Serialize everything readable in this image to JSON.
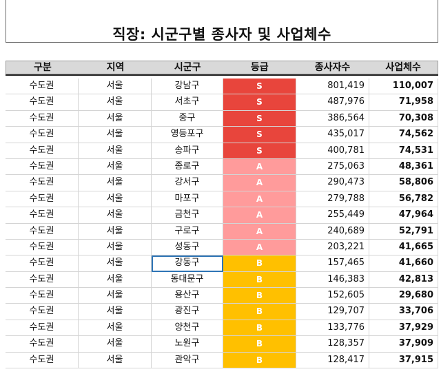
{
  "title": "직장: 시군구별 종사자 및 사업체수",
  "headers": [
    "구분",
    "지역",
    "시군구",
    "등급",
    "종사자수",
    "사업체수"
  ],
  "rows": [
    {
      "category": "수도권",
      "region": "서울",
      "district": "강남구",
      "grade": "S",
      "employees": "801,419",
      "businesses": "110,007"
    },
    {
      "category": "수도권",
      "region": "서울",
      "district": "서초구",
      "grade": "S",
      "employees": "487,976",
      "businesses": "71,958"
    },
    {
      "category": "수도권",
      "region": "서울",
      "district": "중구",
      "grade": "S",
      "employees": "386,564",
      "businesses": "70,308"
    },
    {
      "category": "수도권",
      "region": "서울",
      "district": "영등포구",
      "grade": "S",
      "employees": "435,017",
      "businesses": "74,562"
    },
    {
      "category": "수도권",
      "region": "서울",
      "district": "송파구",
      "grade": "S",
      "employees": "400,781",
      "businesses": "74,531"
    },
    {
      "category": "수도권",
      "region": "서울",
      "district": "종로구",
      "grade": "A",
      "employees": "275,063",
      "businesses": "48,361"
    },
    {
      "category": "수도권",
      "region": "서울",
      "district": "강서구",
      "grade": "A",
      "employees": "290,473",
      "businesses": "58,806"
    },
    {
      "category": "수도권",
      "region": "서울",
      "district": "마포구",
      "grade": "A",
      "employees": "279,788",
      "businesses": "56,782"
    },
    {
      "category": "수도권",
      "region": "서울",
      "district": "금천구",
      "grade": "A",
      "employees": "255,449",
      "businesses": "47,964"
    },
    {
      "category": "수도권",
      "region": "서울",
      "district": "구로구",
      "grade": "A",
      "employees": "240,689",
      "businesses": "52,791"
    },
    {
      "category": "수도권",
      "region": "서울",
      "district": "성동구",
      "grade": "A",
      "employees": "203,221",
      "businesses": "41,665"
    },
    {
      "category": "수도권",
      "region": "서울",
      "district": "강동구",
      "grade": "B",
      "employees": "157,465",
      "businesses": "41,660"
    },
    {
      "category": "수도권",
      "region": "서울",
      "district": "동대문구",
      "grade": "B",
      "employees": "146,383",
      "businesses": "42,813"
    },
    {
      "category": "수도권",
      "region": "서울",
      "district": "용산구",
      "grade": "B",
      "employees": "152,605",
      "businesses": "29,680"
    },
    {
      "category": "수도권",
      "region": "서울",
      "district": "광진구",
      "grade": "B",
      "employees": "129,707",
      "businesses": "33,706"
    },
    {
      "category": "수도권",
      "region": "서울",
      "district": "양천구",
      "grade": "B",
      "employees": "133,776",
      "businesses": "37,929"
    },
    {
      "category": "수도권",
      "region": "서울",
      "district": "노원구",
      "grade": "B",
      "employees": "128,357",
      "businesses": "37,909"
    },
    {
      "category": "수도권",
      "region": "서울",
      "district": "관악구",
      "grade": "B",
      "employees": "128,417",
      "businesses": "37,915"
    }
  ],
  "selected_row": 11,
  "grade_colors": {
    "S": "#e8453c",
    "A": "#ff9b9b",
    "B": "#ffc000"
  }
}
